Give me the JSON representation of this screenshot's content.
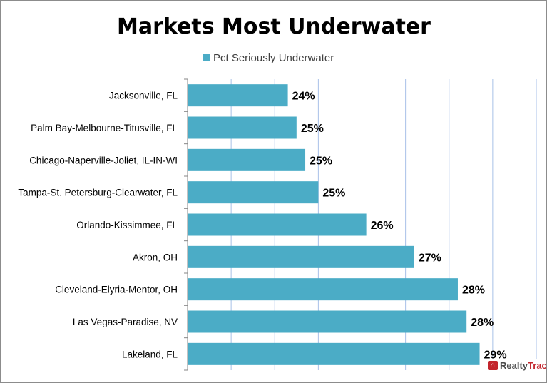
{
  "chart_data": {
    "type": "bar",
    "orientation": "horizontal",
    "title": "Markets Most Underwater",
    "legend": [
      "Pct Seriously Underwater"
    ],
    "legend_position": "top",
    "categories": [
      "Jacksonville, FL",
      "Palm Bay-Melbourne-Titusville, FL",
      "Chicago-Naperville-Joliet, IL-IN-WI",
      "Tampa-St. Petersburg-Clearwater, FL",
      "Orlando-Kissimmee, FL",
      "Akron, OH",
      "Cleveland-Elyria-Mentor, OH",
      "Las Vegas-Paradise, NV",
      "Lakeland, FL"
    ],
    "series": [
      {
        "name": "Pct Seriously Underwater",
        "values": [
          24.3,
          24.5,
          24.7,
          25.0,
          26.1,
          27.2,
          28.2,
          28.4,
          28.7
        ],
        "color": "#4bacc6"
      }
    ],
    "data_labels": [
      "24%",
      "25%",
      "25%",
      "25%",
      "26%",
      "27%",
      "28%",
      "28%",
      "29%"
    ],
    "xlim": [
      22,
      30
    ],
    "grid": true,
    "gridline_color": "#a8c0e8"
  },
  "logo": {
    "part1": "Realty",
    "part2": "Trac"
  }
}
